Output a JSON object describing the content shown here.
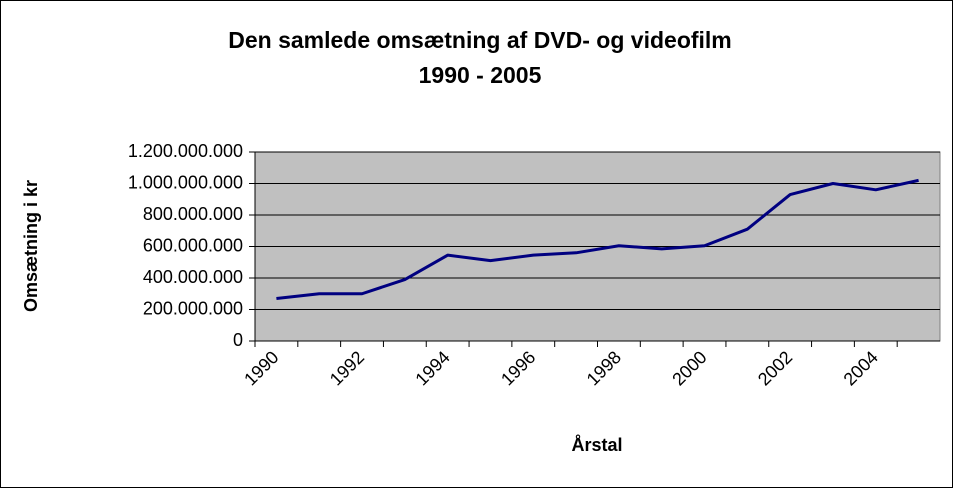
{
  "chart_data": {
    "type": "line",
    "title_lines": [
      "Den samlede omsætning af DVD- og videofilm",
      "1990 - 2005"
    ],
    "y_label": "Omsætning i kr",
    "x_label": "Årstal",
    "categories": [
      "1990",
      null,
      "1992",
      null,
      "1994",
      null,
      "1996",
      null,
      "1998",
      null,
      "2000",
      null,
      "2002",
      null,
      "2004",
      null
    ],
    "series": [
      {
        "name": "Omsætning",
        "color": "#000080",
        "values": [
          270000000,
          300000000,
          300000000,
          390000000,
          545000000,
          510000000,
          545000000,
          560000000,
          605000000,
          585000000,
          605000000,
          710000000,
          930000000,
          1000000000,
          960000000,
          1020000000
        ]
      }
    ],
    "ylim": [
      0,
      1200000000
    ],
    "yticks": [
      0,
      {
        "value": 200000000,
        "label": "200.000.000"
      },
      {
        "value": 400000000,
        "label": "400.000.000"
      },
      {
        "value": 600000000,
        "label": "600.000.000"
      },
      {
        "value": 800000000,
        "label": "800.000.000"
      },
      {
        "value": 1000000000,
        "label": "1.000.000.000"
      },
      {
        "value": 1200000000,
        "label": "1.200.000.000"
      }
    ],
    "grid": true,
    "plot_background": "#c0c0c0"
  }
}
